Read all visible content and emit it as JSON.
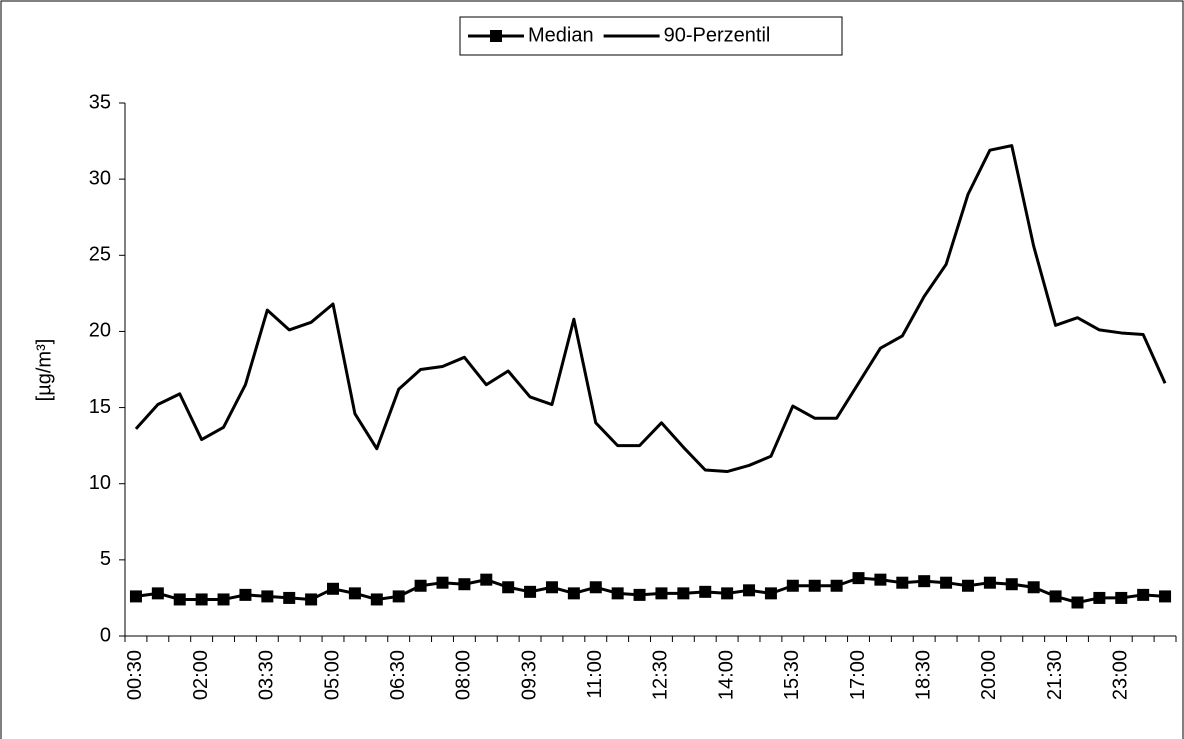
{
  "chart_data": {
    "type": "line",
    "y_label": "[µg/m³]",
    "categories": [
      "00:30",
      null,
      null,
      "02:00",
      null,
      null,
      "03:30",
      null,
      null,
      "05:00",
      null,
      null,
      "06:30",
      null,
      null,
      "08:00",
      null,
      null,
      "09:30",
      null,
      null,
      "11:00",
      null,
      null,
      "12:30",
      null,
      null,
      "14:00",
      null,
      null,
      "15:30",
      null,
      null,
      "17:00",
      null,
      null,
      "18:30",
      null,
      null,
      "20:00",
      null,
      null,
      "21:30",
      null,
      null,
      "23:00",
      null,
      null
    ],
    "series": [
      {
        "name": "Median",
        "color": "#000000",
        "marker": "square",
        "values": [
          2.6,
          2.8,
          2.4,
          2.4,
          2.4,
          2.7,
          2.6,
          2.5,
          2.4,
          3.1,
          2.8,
          2.4,
          2.6,
          3.3,
          3.5,
          3.4,
          3.7,
          3.2,
          2.9,
          3.2,
          2.8,
          3.2,
          2.8,
          2.7,
          2.8,
          2.8,
          2.9,
          2.8,
          3.0,
          2.8,
          3.3,
          3.3,
          3.3,
          3.8,
          3.7,
          3.5,
          3.6,
          3.5,
          3.3,
          3.5,
          3.4,
          3.2,
          2.6,
          2.2,
          2.5,
          2.5,
          2.7,
          2.6
        ]
      },
      {
        "name": "90-Perzentil",
        "color": "#000000",
        "values": [
          13.6,
          15.2,
          15.9,
          12.9,
          13.7,
          16.5,
          21.4,
          20.1,
          20.6,
          21.8,
          14.6,
          12.3,
          16.2,
          17.5,
          17.7,
          18.3,
          16.5,
          17.4,
          15.7,
          15.2,
          20.8,
          14.0,
          12.5,
          12.5,
          14.0,
          12.4,
          10.9,
          10.8,
          11.2,
          11.8,
          15.1,
          14.3,
          14.3,
          16.6,
          18.9,
          19.7,
          22.3,
          24.4,
          29.0,
          31.9,
          32.2,
          25.6,
          20.4,
          20.9,
          20.1,
          19.9,
          19.8,
          16.6
        ]
      }
    ],
    "ylim": [
      0,
      35
    ],
    "yticks": [
      0,
      5,
      10,
      15,
      20,
      25,
      30,
      35
    ],
    "grid": false,
    "legend": "top"
  }
}
